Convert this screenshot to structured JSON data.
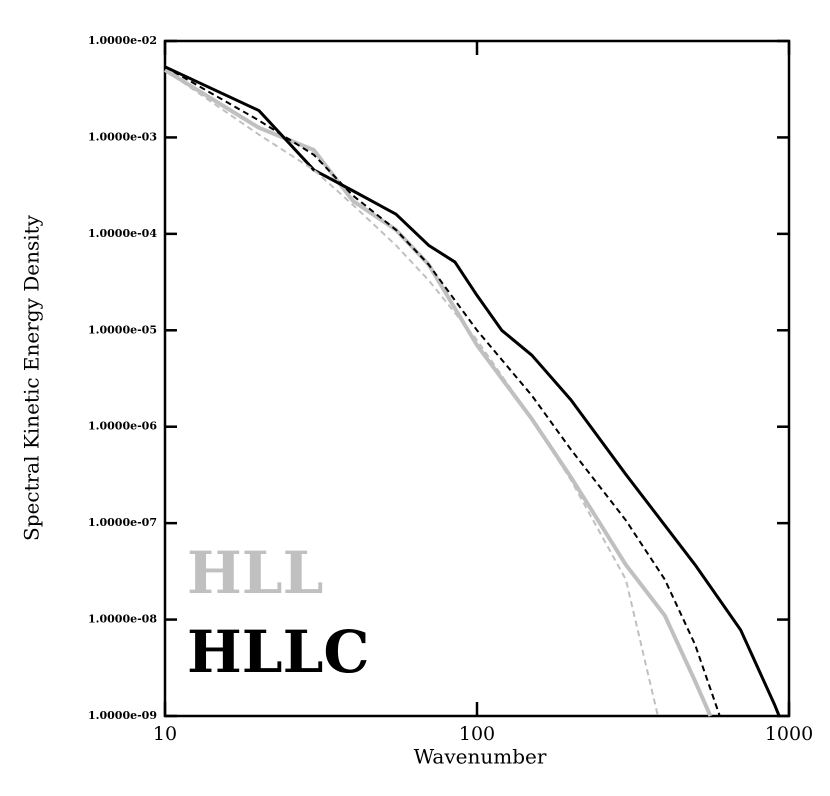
{
  "chart_data": {
    "type": "line",
    "xlabel": "Wavenumber",
    "ylabel": "Spectral Kinetic Energy Density",
    "xscale": "log",
    "yscale": "log",
    "xlim": [
      10,
      1000
    ],
    "ylim": [
      1e-09,
      0.01
    ],
    "xticks": [
      10,
      100,
      1000
    ],
    "yticks": [
      {
        "value": 1e-09,
        "label": "1.0000e-09"
      },
      {
        "value": 1e-08,
        "label": "1.0000e-08"
      },
      {
        "value": 1e-07,
        "label": "1.0000e-07"
      },
      {
        "value": 1e-06,
        "label": "1.0000e-06"
      },
      {
        "value": 1e-05,
        "label": "1.0000e-05"
      },
      {
        "value": 0.0001,
        "label": "1.0000e-04"
      },
      {
        "value": 0.001,
        "label": "1.0000e-03"
      },
      {
        "value": 0.01,
        "label": "1.0000e-02"
      }
    ],
    "grid": false,
    "legend": "lower left",
    "series": [
      {
        "name": "HLL",
        "color": "#c0c0c0",
        "dash": false,
        "x": [
          10,
          20,
          30,
          40,
          55,
          70,
          100,
          150,
          200,
          250,
          300,
          400,
          500,
          560
        ],
        "values": [
          0.005,
          0.00126,
          0.00074,
          0.00022,
          0.00011,
          4.8e-05,
          7e-06,
          1.2e-06,
          3e-07,
          9.5e-08,
          3.7e-08,
          1.1e-08,
          2.3e-09,
          1e-09
        ]
      },
      {
        "name": "HLLC",
        "color": "#000000",
        "dash": false,
        "x": [
          10,
          20,
          30,
          40,
          55,
          70,
          85,
          100,
          120,
          150,
          200,
          300,
          400,
          500,
          700,
          900,
          930
        ],
        "values": [
          0.0054,
          0.0019,
          0.00046,
          0.00028,
          0.00016,
          7.6e-05,
          5.1e-05,
          2.3e-05,
          1e-05,
          5.5e-06,
          1.9e-06,
          3.2e-07,
          9.5e-08,
          3.7e-08,
          7.8e-09,
          1.3e-09,
          1e-09
        ]
      },
      {
        "color": "#000000",
        "dash": true,
        "x": [
          10,
          20,
          30,
          40,
          55,
          70,
          100,
          150,
          200,
          300,
          400,
          500,
          600
        ],
        "values": [
          0.0054,
          0.0015,
          0.00066,
          0.00025,
          0.00011,
          4.8e-05,
          1e-05,
          2.1e-06,
          5.8e-07,
          1.07e-07,
          2.6e-08,
          5.5e-09,
          1e-09
        ]
      },
      {
        "color": "#c0c0c0",
        "dash": true,
        "x": [
          10,
          20,
          30,
          40,
          55,
          70,
          100,
          150,
          200,
          300,
          380
        ],
        "values": [
          0.005,
          0.00107,
          0.00046,
          0.0002,
          7.6e-05,
          3.3e-05,
          7.9e-06,
          1.2e-06,
          2.8e-07,
          2.6e-08,
          1e-09
        ]
      }
    ]
  }
}
